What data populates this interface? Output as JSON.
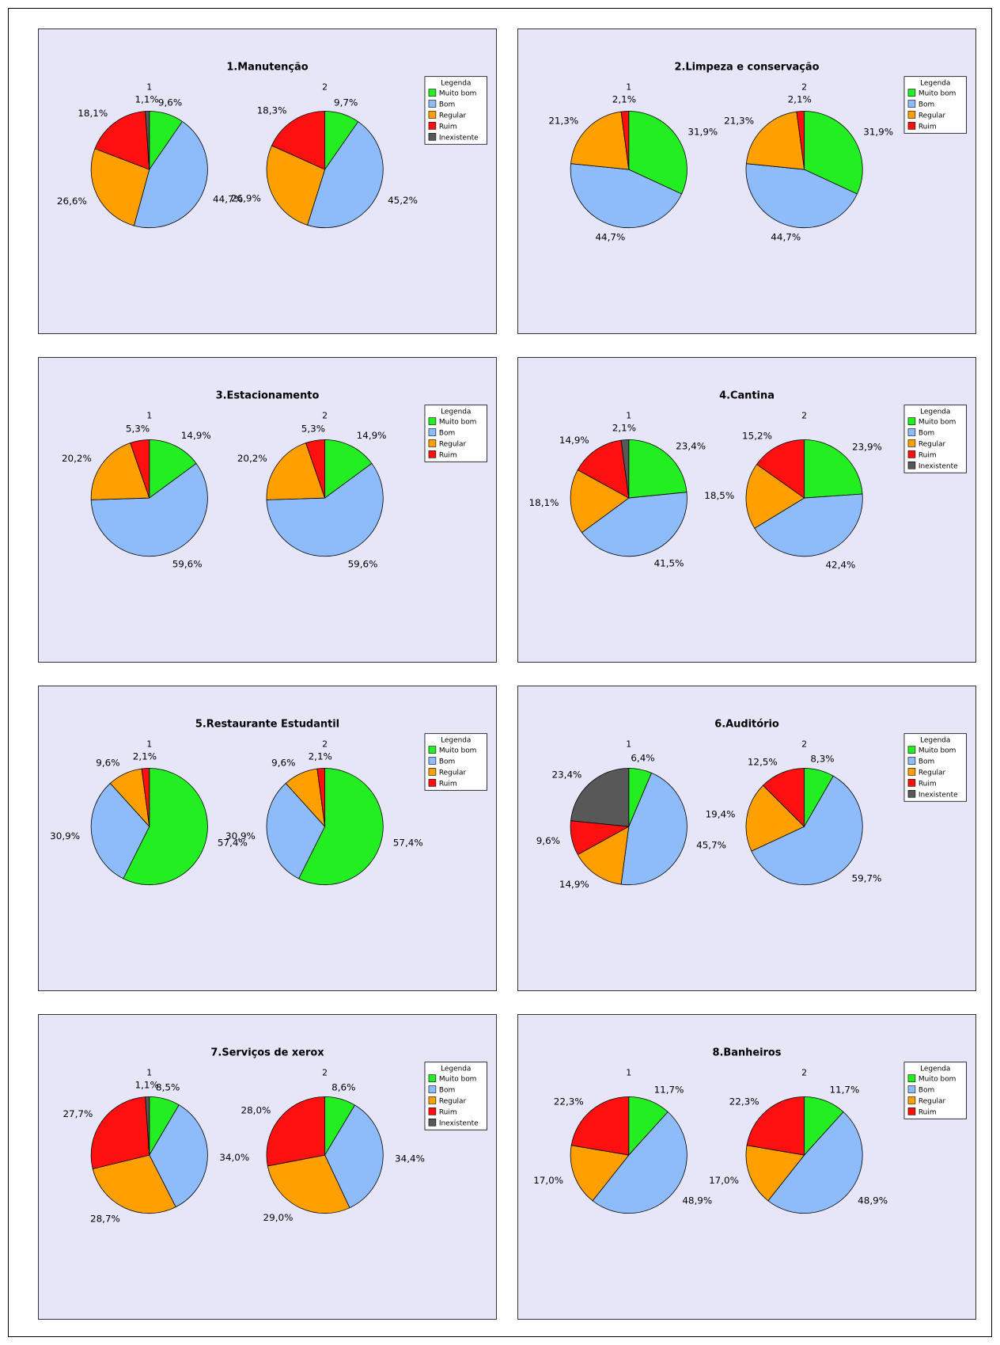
{
  "colors": {
    "Muito bom": "#22ee22",
    "Bom": "#8ebbfa",
    "Regular": "#ff9f00",
    "Ruim": "#ff1010",
    "Inexistente": "#585858"
  },
  "legend_title": "Legenda",
  "chart_data": [
    {
      "type": "pie",
      "title": "1.Manutenção",
      "legend": [
        "Muito bom",
        "Bom",
        "Regular",
        "Ruim",
        "Inexistente"
      ],
      "pies": [
        {
          "name": "1",
          "labels": [
            "Muito bom",
            "Bom",
            "Regular",
            "Ruim",
            "Inexistente"
          ],
          "values": [
            9.6,
            44.7,
            26.6,
            18.1,
            1.1
          ],
          "value_labels": [
            "9,6%",
            "44,7%",
            "26,6%",
            "18,1%",
            "1,1%"
          ]
        },
        {
          "name": "2",
          "labels": [
            "Muito bom",
            "Bom",
            "Regular",
            "Ruim"
          ],
          "values": [
            9.7,
            45.2,
            26.9,
            18.3
          ],
          "value_labels": [
            "9,7%",
            "45,2%",
            "26,9%",
            "18,3%"
          ]
        }
      ]
    },
    {
      "type": "pie",
      "title": "2.Limpeza e conservação",
      "legend": [
        "Muito bom",
        "Bom",
        "Regular",
        "Ruim"
      ],
      "pies": [
        {
          "name": "1",
          "labels": [
            "Muito bom",
            "Bom",
            "Regular",
            "Ruim"
          ],
          "values": [
            31.9,
            44.7,
            21.3,
            2.1
          ],
          "value_labels": [
            "31,9%",
            "44,7%",
            "21,3%",
            "2,1%"
          ]
        },
        {
          "name": "2",
          "labels": [
            "Muito bom",
            "Bom",
            "Regular",
            "Ruim"
          ],
          "values": [
            31.9,
            44.7,
            21.3,
            2.1
          ],
          "value_labels": [
            "31,9%",
            "44,7%",
            "21,3%",
            "2,1%"
          ]
        }
      ]
    },
    {
      "type": "pie",
      "title": "3.Estacionamento",
      "legend": [
        "Muito bom",
        "Bom",
        "Regular",
        "Ruim"
      ],
      "pies": [
        {
          "name": "1",
          "labels": [
            "Muito bom",
            "Bom",
            "Regular",
            "Ruim"
          ],
          "values": [
            14.9,
            59.6,
            20.2,
            5.3
          ],
          "value_labels": [
            "14,9%",
            "59,6%",
            "20,2%",
            "5,3%"
          ]
        },
        {
          "name": "2",
          "labels": [
            "Muito bom",
            "Bom",
            "Regular",
            "Ruim"
          ],
          "values": [
            14.9,
            59.6,
            20.2,
            5.3
          ],
          "value_labels": [
            "14,9%",
            "59,6%",
            "20,2%",
            "5,3%"
          ]
        }
      ]
    },
    {
      "type": "pie",
      "title": "4.Cantina",
      "legend": [
        "Muito bom",
        "Bom",
        "Regular",
        "Ruim",
        "Inexistente"
      ],
      "pies": [
        {
          "name": "1",
          "labels": [
            "Muito bom",
            "Bom",
            "Regular",
            "Ruim",
            "Inexistente"
          ],
          "values": [
            23.4,
            41.5,
            18.1,
            14.9,
            2.1
          ],
          "value_labels": [
            "23,4%",
            "41,5%",
            "18,1%",
            "14,9%",
            "2,1%"
          ]
        },
        {
          "name": "2",
          "labels": [
            "Muito bom",
            "Bom",
            "Regular",
            "Ruim"
          ],
          "values": [
            23.9,
            42.4,
            18.5,
            15.2
          ],
          "value_labels": [
            "23,9%",
            "42,4%",
            "18,5%",
            "15,2%"
          ]
        }
      ]
    },
    {
      "type": "pie",
      "title": "5.Restaurante Estudantil",
      "legend": [
        "Muito bom",
        "Bom",
        "Regular",
        "Ruim"
      ],
      "pies": [
        {
          "name": "1",
          "labels": [
            "Muito bom",
            "Bom",
            "Regular",
            "Ruim"
          ],
          "values": [
            57.4,
            30.9,
            9.6,
            2.1
          ],
          "value_labels": [
            "57,4%",
            "30,9%",
            "9,6%",
            "2,1%"
          ]
        },
        {
          "name": "2",
          "labels": [
            "Muito bom",
            "Bom",
            "Regular",
            "Ruim"
          ],
          "values": [
            57.4,
            30.9,
            9.6,
            2.1
          ],
          "value_labels": [
            "57,4%",
            "30,9%",
            "9,6%",
            "2,1%"
          ]
        }
      ]
    },
    {
      "type": "pie",
      "title": "6.Auditório",
      "legend": [
        "Muito bom",
        "Bom",
        "Regular",
        "Ruim",
        "Inexistente"
      ],
      "pies": [
        {
          "name": "1",
          "labels": [
            "Muito bom",
            "Bom",
            "Regular",
            "Ruim",
            "Inexistente"
          ],
          "values": [
            6.4,
            45.7,
            14.9,
            9.6,
            23.4
          ],
          "value_labels": [
            "6,4%",
            "45,7%",
            "14,9%",
            "9,6%",
            "23,4%"
          ]
        },
        {
          "name": "2",
          "labels": [
            "Muito bom",
            "Bom",
            "Regular",
            "Ruim"
          ],
          "values": [
            8.3,
            59.7,
            19.4,
            12.5
          ],
          "value_labels": [
            "8,3%",
            "59,7%",
            "19,4%",
            "12,5%"
          ]
        }
      ]
    },
    {
      "type": "pie",
      "title": "7.Serviços de xerox",
      "legend": [
        "Muito bom",
        "Bom",
        "Regular",
        "Ruim",
        "Inexistente"
      ],
      "pies": [
        {
          "name": "1",
          "labels": [
            "Muito bom",
            "Bom",
            "Regular",
            "Ruim",
            "Inexistente"
          ],
          "values": [
            8.5,
            34.0,
            28.7,
            27.7,
            1.1
          ],
          "value_labels": [
            "8,5%",
            "34,0%",
            "28,7%",
            "27,7%",
            "1,1%"
          ]
        },
        {
          "name": "2",
          "labels": [
            "Muito bom",
            "Bom",
            "Regular",
            "Ruim"
          ],
          "values": [
            8.6,
            34.4,
            29.0,
            28.0
          ],
          "value_labels": [
            "8,6%",
            "34,4%",
            "29,0%",
            "28,0%"
          ]
        }
      ]
    },
    {
      "type": "pie",
      "title": "8.Banheiros",
      "legend": [
        "Muito bom",
        "Bom",
        "Regular",
        "Ruim"
      ],
      "pies": [
        {
          "name": "1",
          "labels": [
            "Muito bom",
            "Bom",
            "Regular",
            "Ruim"
          ],
          "values": [
            11.7,
            48.9,
            17.0,
            22.3
          ],
          "value_labels": [
            "11,7%",
            "48,9%",
            "17,0%",
            "22,3%"
          ]
        },
        {
          "name": "2",
          "labels": [
            "Muito bom",
            "Bom",
            "Regular",
            "Ruim"
          ],
          "values": [
            11.7,
            48.9,
            17.0,
            22.3
          ],
          "value_labels": [
            "11,7%",
            "48,9%",
            "17,0%",
            "22,3%"
          ]
        }
      ]
    }
  ]
}
